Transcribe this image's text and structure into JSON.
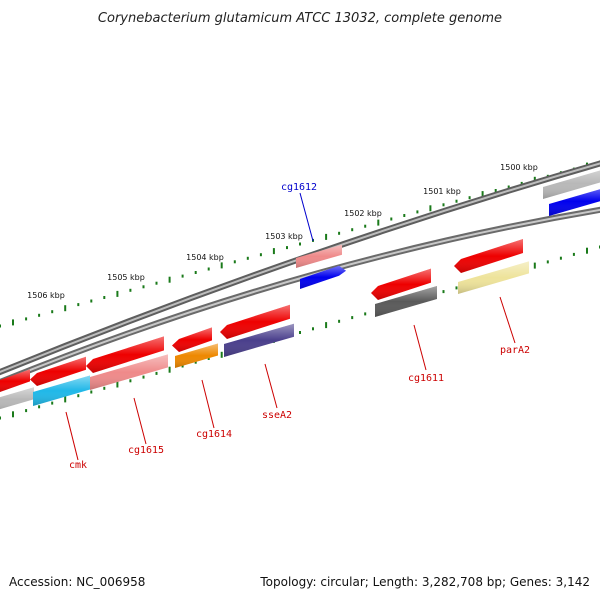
{
  "title": "Corynebacterium glutamicum ATCC 13032, complete genome",
  "footer": {
    "accession": "Accession: NC_006958",
    "summary": "Topology: circular; Length: 3,282,708 bp; Genes: 3,142"
  },
  "ticks": [
    {
      "label": "1500 kbp",
      "kbp": 1500
    },
    {
      "label": "1501 kbp",
      "kbp": 1501
    },
    {
      "label": "1502 kbp",
      "kbp": 1502
    },
    {
      "label": "1503 kbp",
      "kbp": 1503
    },
    {
      "label": "1504 kbp",
      "kbp": 1504
    },
    {
      "label": "1505 kbp",
      "kbp": 1505
    },
    {
      "label": "1506 kbp",
      "kbp": 1506
    }
  ],
  "colors": {
    "backbone": "#7a7a7a",
    "tick": "#1a7a1a",
    "label_red": "#cc0000",
    "label_blue": "#0000cc",
    "cds_red": "#ee0000",
    "pink": "#ef8a8a",
    "cyan": "#20b8e8",
    "orange": "#ee8800",
    "purple": "#4a3f8c",
    "dark_grey": "#5a5a5a",
    "khaki": "#eee39a",
    "light_grey": "#b8b8b8",
    "blue": "#0000ee"
  },
  "genes": [
    {
      "label": "cmk",
      "label_color": "label_red"
    },
    {
      "label": "cg1615",
      "label_color": "label_red"
    },
    {
      "label": "cg1614",
      "label_color": "label_red"
    },
    {
      "label": "sseA2",
      "label_color": "label_red"
    },
    {
      "label": "cg1612",
      "label_color": "label_blue"
    },
    {
      "label": "cg1611",
      "label_color": "label_red"
    },
    {
      "label": "parA2",
      "label_color": "label_red"
    }
  ]
}
